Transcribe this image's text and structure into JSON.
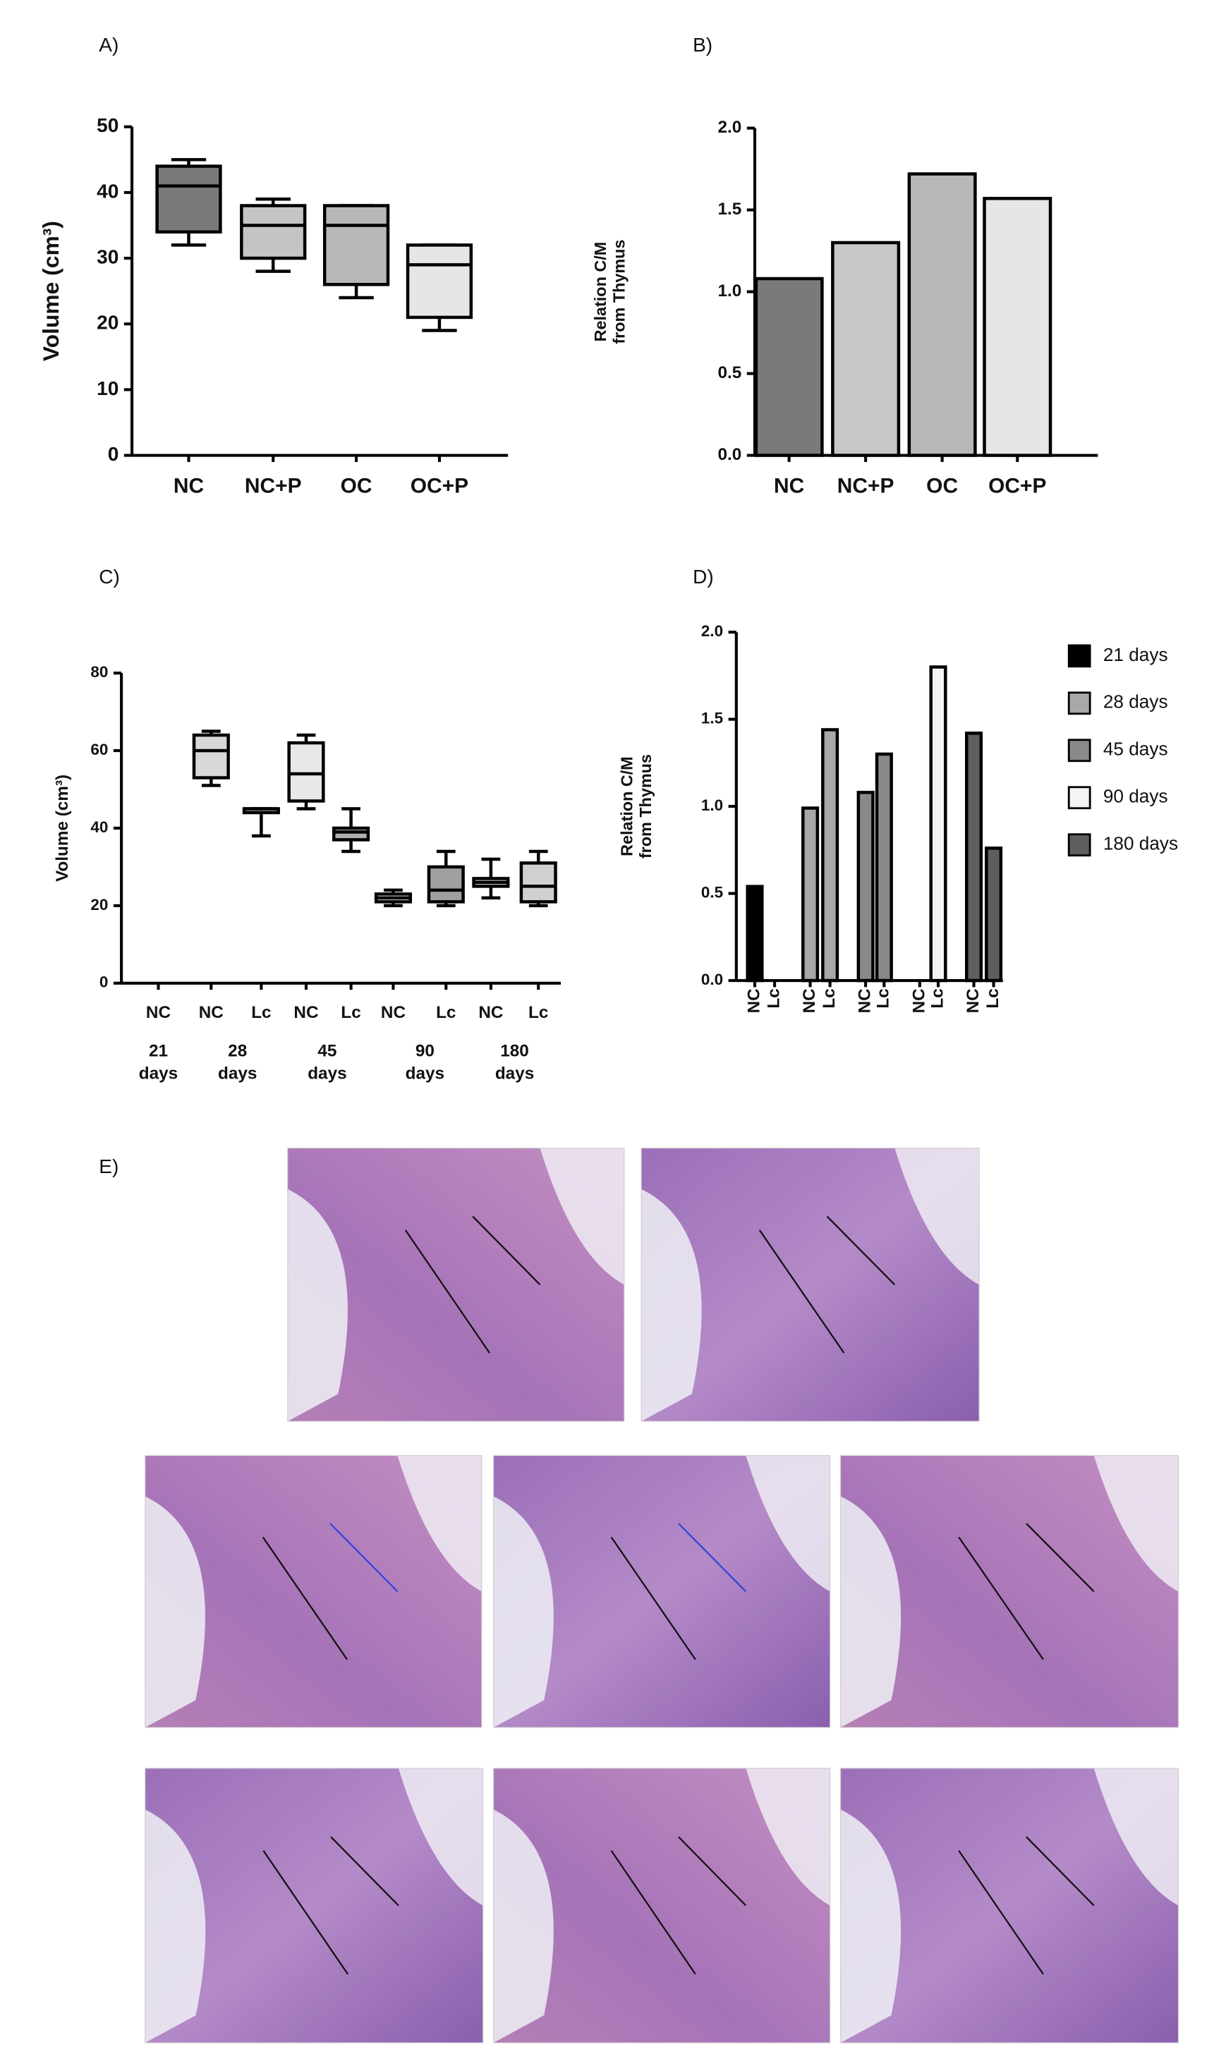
{
  "chart_data": [
    {
      "type": "box",
      "label": "A)",
      "ylabel": "Volume (cm³)",
      "categories": [
        "NC",
        "NC+P",
        "OC",
        "OC+P"
      ],
      "boxes": [
        {
          "min": 32,
          "q1": 34,
          "median": 41,
          "q3": 44,
          "max": 45,
          "color": "#7a7a7a"
        },
        {
          "min": 28,
          "q1": 30,
          "median": 35,
          "q3": 38,
          "max": 39,
          "color": "#c4c4c4"
        },
        {
          "min": 24,
          "q1": 26,
          "median": 35,
          "q3": 38,
          "max": 38,
          "color": "#b8b8b8"
        },
        {
          "min": 19,
          "q1": 21,
          "median": 29,
          "q3": 32,
          "max": 32,
          "color": "#e6e6e6"
        }
      ],
      "ylim": [
        0,
        50
      ],
      "yticks": [
        0,
        10,
        20,
        30,
        40,
        50
      ]
    },
    {
      "type": "bar",
      "label": "B)",
      "ylabel": [
        "Relation C/M",
        "from Thymus"
      ],
      "categories": [
        "NC",
        "NC+P",
        "OC",
        "OC+P"
      ],
      "values": [
        1.08,
        1.3,
        1.72,
        1.57
      ],
      "colors": [
        "#7a7a7a",
        "#c8c8c8",
        "#b8b8b8",
        "#e6e6e6"
      ],
      "ylim": [
        0,
        2
      ],
      "yticks": [
        {
          "value": 0,
          "label": "0.0"
        },
        {
          "value": 0.5,
          "label": "0.5"
        },
        {
          "value": 1,
          "label": "1.0"
        },
        {
          "value": 1.5,
          "label": "1.5"
        },
        {
          "value": 2,
          "label": "2.0"
        }
      ]
    },
    {
      "type": "box",
      "label": "C)",
      "ylabel": "Volume (cm³)",
      "categories": [
        "NC",
        "NC",
        "Lc",
        "NC",
        "Lc",
        "NC",
        "Lc",
        "NC",
        "Lc"
      ],
      "groups": [
        {
          "label": [
            "21",
            "days"
          ],
          "size": 1
        },
        {
          "label": [
            "28",
            "days"
          ],
          "size": 2
        },
        {
          "label": [
            "45",
            "days"
          ],
          "size": 2
        },
        {
          "label": [
            "90",
            "days"
          ],
          "size": 2
        },
        {
          "label": [
            "180",
            "days"
          ],
          "size": 2
        }
      ],
      "boxes": [
        null,
        {
          "min": 51,
          "q1": 53,
          "median": 60,
          "q3": 64,
          "max": 65,
          "color": "#d8d8d8"
        },
        {
          "min": 38,
          "q1": 44,
          "median": 45,
          "q3": 45,
          "max": 45,
          "color": "#b0b0b0"
        },
        {
          "min": 45,
          "q1": 47,
          "median": 54,
          "q3": 62,
          "max": 64,
          "color": "#e8e8e8"
        },
        {
          "min": 34,
          "q1": 37,
          "median": 39,
          "q3": 40,
          "max": 45,
          "color": "#b0b0b0"
        },
        {
          "min": 20,
          "q1": 21,
          "median": 22,
          "q3": 23,
          "max": 24,
          "color": "#d8d8d8"
        },
        {
          "min": 20,
          "q1": 21,
          "median": 24,
          "q3": 30,
          "max": 34,
          "color": "#a0a0a0"
        },
        {
          "min": 22,
          "q1": 25,
          "median": 26,
          "q3": 27,
          "max": 32,
          "color": "#d8d8d8"
        },
        {
          "min": 20,
          "q1": 21,
          "median": 25,
          "q3": 31,
          "max": 34,
          "color": "#d0d0d0"
        }
      ],
      "ylim": [
        0,
        80
      ],
      "yticks": [
        0,
        20,
        40,
        60,
        80
      ]
    },
    {
      "type": "bar",
      "label": "D)",
      "ylabel": [
        "Relation C/M",
        "from Thymus"
      ],
      "categories": [
        "NC",
        "Lc",
        "NC",
        "Lc",
        "NC",
        "Lc",
        "NC",
        "Lc",
        "NC",
        "Lc"
      ],
      "series": [
        {
          "name": "21 days",
          "color": "#000000",
          "values": [
            0.54,
            null,
            null,
            null,
            null,
            null,
            null,
            null,
            null,
            null
          ]
        },
        {
          "name": "28 days",
          "color": "#a8a8a8",
          "values": [
            null,
            null,
            0.99,
            1.44,
            null,
            null,
            null,
            null,
            null,
            null
          ]
        },
        {
          "name": "45 days",
          "color": "#8a8a8a",
          "values": [
            null,
            null,
            null,
            null,
            1.08,
            1.3,
            null,
            null,
            null,
            null
          ]
        },
        {
          "name": "90 days",
          "color": "#f4f4f4",
          "values": [
            null,
            null,
            null,
            null,
            null,
            null,
            null,
            1.8,
            null,
            null
          ]
        },
        {
          "name": "180 days",
          "color": "#5e5e5e",
          "values": [
            null,
            null,
            null,
            null,
            null,
            null,
            null,
            null,
            1.42,
            0.76
          ]
        }
      ],
      "legend": "right",
      "ylim": [
        0,
        2
      ],
      "yticks": [
        {
          "value": 0,
          "label": "0.0"
        },
        {
          "value": 0.5,
          "label": "0.5"
        },
        {
          "value": 1,
          "label": "1.0"
        },
        {
          "value": 1.5,
          "label": "1.5"
        },
        {
          "value": 2,
          "label": "2.0"
        }
      ]
    }
  ],
  "panel_e": {
    "label": "E)"
  }
}
